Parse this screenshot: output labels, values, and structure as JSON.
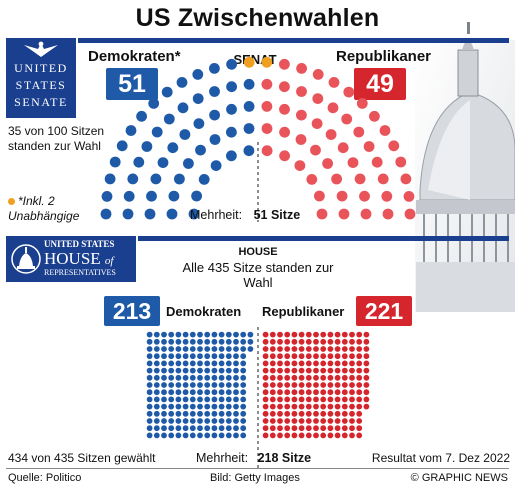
{
  "title": "US Zwischenwahlen",
  "colors": {
    "dem": "#1f5aa8",
    "rep": "#d5262d",
    "independent": "#f0a020",
    "rule": "#1b3f8f"
  },
  "senate": {
    "seal_lines": [
      "UNITED",
      "STATES",
      "SENATE"
    ],
    "seal_icon": "eagle-icon",
    "chamber": "SENAT",
    "dem_label": "Demokraten*",
    "rep_label": "Republikaner",
    "dem_seats": "51",
    "rep_seats": "49",
    "contested_note": "35 von 100 Sitzen standen zur Wahl",
    "footnote": "*Inkl. 2 Unabhängige",
    "majority_label": "Mehrheit:",
    "majority_value": "51 Sitze"
  },
  "house": {
    "seal_line1": "UNITED STATES",
    "seal_line2": "HOUSE",
    "seal_of": "of",
    "seal_line3": "REPRESENTATIVES",
    "seal_icon": "capitol-dome-icon",
    "chamber": "HOUSE",
    "contested_note": "Alle 435 Sitze standen zur Wahl",
    "dem_label": "Demokraten",
    "rep_label": "Republikaner",
    "dem_seats": "213",
    "rep_seats": "221",
    "decided_note": "434 von 435 Sitzen gewählt",
    "majority_label": "Mehrheit:",
    "majority_value": "218 Sitze",
    "result_date": "Resultat vom 7. Dez 2022"
  },
  "footer": {
    "source": "Quelle: Politico",
    "photo_credit": "Bild: Getty Images",
    "copyright": "© GRAPHIC NEWS"
  },
  "chart_data": [
    {
      "type": "hemicycle",
      "chamber": "SENAT",
      "total": 100,
      "majority": 51,
      "series": [
        {
          "name": "Demokraten",
          "values": [
            49
          ]
        },
        {
          "name": "Unabhängige",
          "values": [
            2
          ]
        },
        {
          "name": "Republikaner",
          "values": [
            49
          ]
        }
      ]
    },
    {
      "type": "waffle",
      "chamber": "HOUSE",
      "total": 435,
      "decided": 434,
      "majority": 218,
      "series": [
        {
          "name": "Demokraten",
          "values": [
            213
          ]
        },
        {
          "name": "Republikaner",
          "values": [
            221
          ]
        }
      ]
    }
  ]
}
